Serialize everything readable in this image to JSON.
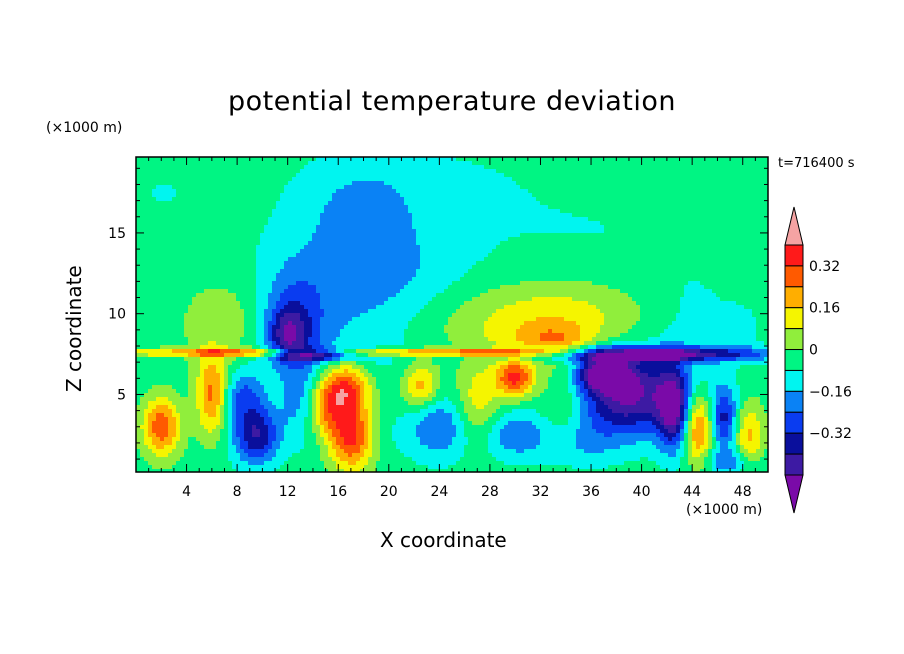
{
  "chart_data": {
    "type": "heatmap",
    "title": "potential temperature deviation",
    "xlabel": "X coordinate",
    "ylabel": "Z coordinate",
    "x_unit": "(×1000 m)",
    "y_unit": "(×1000 m)",
    "time_label": "t=716400 s",
    "xlim": [
      0,
      50
    ],
    "ylim": [
      0.2,
      19.7
    ],
    "x_ticks": [
      4,
      8,
      12,
      16,
      20,
      24,
      28,
      32,
      36,
      40,
      44,
      48
    ],
    "y_ticks": [
      5,
      10,
      15
    ],
    "colorbar": {
      "tick_labels": [
        "0.32",
        "0.16",
        "0",
        "−0.16",
        "−0.32"
      ],
      "tick_levels": [
        0.32,
        0.16,
        0,
        -0.16,
        -0.32
      ],
      "levels": [
        -0.48,
        -0.4,
        -0.32,
        -0.24,
        -0.16,
        -0.08,
        0,
        0.08,
        0.16,
        0.24,
        0.32,
        0.4,
        0.48
      ],
      "colors": [
        "#7a0aa8",
        "#3d1aa3",
        "#0a0f9c",
        "#0a3cf0",
        "#0a82f5",
        "#00f5f0",
        "#00f583",
        "#90ee3c",
        "#f5f500",
        "#ffae00",
        "#ff5a00",
        "#ff1a1a",
        "#f5a3a3"
      ]
    },
    "field": {
      "background_level": 0.0,
      "blobs": [
        {
          "x": 2,
          "z": 17.5,
          "rx": 6,
          "rz": 4,
          "v": -0.04
        },
        {
          "x": 23,
          "z": 18.5,
          "rx": 10,
          "rz": 2.5,
          "v": -0.04
        },
        {
          "x": 36,
          "z": 15,
          "rx": 14,
          "rz": 3.5,
          "v": -0.04
        },
        {
          "x": 17,
          "z": 11,
          "rx": 7,
          "rz": 6,
          "v": -0.12
        },
        {
          "x": 18,
          "z": 16,
          "rx": 4,
          "rz": 3,
          "v": -0.1
        },
        {
          "x": 21,
          "z": 12,
          "rx": 6,
          "rz": 3.5,
          "v": -0.05
        },
        {
          "x": 12.5,
          "z": 9.5,
          "rx": 2.5,
          "rz": 3.2,
          "v": -0.2
        },
        {
          "x": 12,
          "z": 8.7,
          "rx": 1.5,
          "rz": 1.5,
          "v": -0.24
        },
        {
          "x": 7,
          "z": 9.5,
          "rx": 3.5,
          "rz": 2.8,
          "v": 0.1
        },
        {
          "x": 28,
          "z": 9.5,
          "rx": 9,
          "rz": 2.2,
          "v": 0.1
        },
        {
          "x": 34,
          "z": 9.6,
          "rx": 6,
          "rz": 2.5,
          "v": 0.12
        },
        {
          "x": 33,
          "z": 8.3,
          "rx": 3,
          "rz": 1.0,
          "v": 0.16
        },
        {
          "x": 44,
          "z": 9.5,
          "rx": 3,
          "rz": 3,
          "v": -0.06
        },
        {
          "x": 48,
          "z": 9,
          "rx": 2,
          "rz": 2,
          "v": -0.05
        },
        {
          "x": 40,
          "z": 7.5,
          "rx": 10,
          "rz": 0.45,
          "v": -0.44
        },
        {
          "x": 14.5,
          "z": 7.5,
          "rx": 3,
          "rz": 0.35,
          "v": -0.46
        },
        {
          "x": 10,
          "z": 7.6,
          "rx": 12,
          "rz": 0.25,
          "v": 0.3
        },
        {
          "x": 28,
          "z": 7.6,
          "rx": 8,
          "rz": 0.25,
          "v": 0.28
        },
        {
          "x": 2,
          "z": 3,
          "rx": 1.5,
          "rz": 1.8,
          "v": 0.34
        },
        {
          "x": 6,
          "z": 5,
          "rx": 1.2,
          "rz": 2.5,
          "v": 0.3
        },
        {
          "x": 8.5,
          "z": 5,
          "rx": 1.5,
          "rz": 1.5,
          "v": -0.2
        },
        {
          "x": 9.5,
          "z": 2.5,
          "rx": 1.8,
          "rz": 1.8,
          "v": -0.36
        },
        {
          "x": 13,
          "z": 4.5,
          "rx": 1.5,
          "rz": 2.5,
          "v": -0.12
        },
        {
          "x": 16.5,
          "z": 5.5,
          "rx": 2,
          "rz": 1.5,
          "v": 0.38
        },
        {
          "x": 17,
          "z": 2.5,
          "rx": 1.8,
          "rz": 2.2,
          "v": 0.4
        },
        {
          "x": 15,
          "z": 4,
          "rx": 1.5,
          "rz": 1.5,
          "v": 0.22
        },
        {
          "x": 20,
          "z": 2.0,
          "rx": 1.5,
          "rz": 1.5,
          "v": -0.02
        },
        {
          "x": 22.5,
          "z": 5.5,
          "rx": 1.5,
          "rz": 1.5,
          "v": 0.26
        },
        {
          "x": 24,
          "z": 3.0,
          "rx": 2.5,
          "rz": 2,
          "v": -0.2
        },
        {
          "x": 27,
          "z": 4.5,
          "rx": 1.8,
          "rz": 2.5,
          "v": 0.18
        },
        {
          "x": 30,
          "z": 6.0,
          "rx": 1.5,
          "rz": 1.2,
          "v": 0.38
        },
        {
          "x": 30,
          "z": 2.5,
          "rx": 2.5,
          "rz": 1.5,
          "v": -0.18
        },
        {
          "x": 34,
          "z": 4.5,
          "rx": 2,
          "rz": 2.5,
          "v": 0.14
        },
        {
          "x": 35,
          "z": 2.0,
          "rx": 3,
          "rz": 1.5,
          "v": -0.12
        },
        {
          "x": 39,
          "z": 5.0,
          "rx": 4.5,
          "rz": 2.5,
          "v": -0.46
        },
        {
          "x": 37,
          "z": 6.3,
          "rx": 2,
          "rz": 1,
          "v": -0.44
        },
        {
          "x": 42.5,
          "z": 4.0,
          "rx": 1.2,
          "rz": 2.5,
          "v": -0.36
        },
        {
          "x": 44.5,
          "z": 3.0,
          "rx": 1.2,
          "rz": 2.2,
          "v": 0.34
        },
        {
          "x": 46.5,
          "z": 3.5,
          "rx": 1.1,
          "rz": 2.0,
          "v": -0.3
        },
        {
          "x": 48.5,
          "z": 2.5,
          "rx": 1.2,
          "rz": 2.0,
          "v": 0.22
        },
        {
          "x": 47,
          "z": 0.8,
          "rx": 2,
          "rz": 0.8,
          "v": -0.16
        }
      ]
    }
  }
}
